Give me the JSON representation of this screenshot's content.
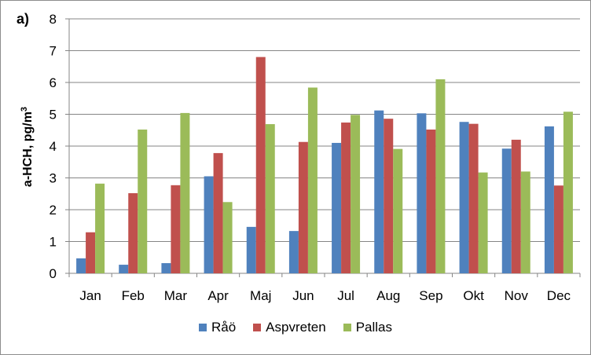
{
  "panel_label": "a)",
  "colors": {
    "raao": "#4f81bd",
    "aspvreten": "#c0504d",
    "pallas": "#9bbb59",
    "grid": "#868686",
    "axis": "#868686"
  },
  "chart_data": {
    "type": "bar",
    "categories": [
      "Jan",
      "Feb",
      "Mar",
      "Apr",
      "Maj",
      "Jun",
      "Jul",
      "Aug",
      "Sep",
      "Okt",
      "Nov",
      "Dec"
    ],
    "series": [
      {
        "name": "Råö",
        "values": [
          0.47,
          0.27,
          0.32,
          3.05,
          1.46,
          1.33,
          4.1,
          5.12,
          5.03,
          4.76,
          3.92,
          4.62
        ]
      },
      {
        "name": "Aspvreten",
        "values": [
          1.29,
          2.52,
          2.77,
          3.78,
          6.8,
          4.13,
          4.74,
          4.86,
          4.52,
          4.7,
          4.2,
          2.76
        ]
      },
      {
        "name": "Pallas",
        "values": [
          2.82,
          4.52,
          5.04,
          2.24,
          4.69,
          5.84,
          4.98,
          3.91,
          6.1,
          3.17,
          3.2,
          5.08
        ]
      }
    ],
    "ylabel_main": "a-HCH, pg/m",
    "ylabel_sup": "3",
    "ylim": [
      0,
      8
    ],
    "yticks": [
      "0",
      "1",
      "2",
      "3",
      "4",
      "5",
      "6",
      "7",
      "8"
    ],
    "grid": true,
    "legend_position": "bottom"
  }
}
